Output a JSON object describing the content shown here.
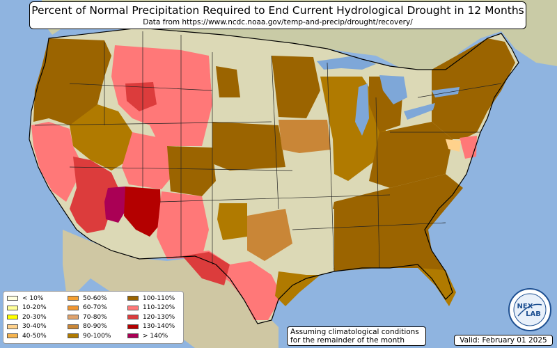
{
  "title": "Percent of Normal Precipitation Required to End Current Hydrological Drought in 12 Months",
  "subtitle": "Data from https://www.ncdc.noaa.gov/temp-and-precip/drought/recovery/",
  "assumption_line1": "Assuming climatological conditions",
  "assumption_line2": "for the remainder of the month",
  "valid_text": "Valid: February 01 2025",
  "logo": {
    "icon": "nex-lab-logo",
    "text_top": "NEX",
    "text_bottom": "LAB"
  },
  "colors": {
    "ocean": "#8fb4e0",
    "land": "#dcd9b6",
    "lakes": "#7ea7d8"
  },
  "legend": [
    {
      "label": "< 10%",
      "color": "#ffffe0"
    },
    {
      "label": "10-20%",
      "color": "#ffff99"
    },
    {
      "label": "20-30%",
      "color": "#ffff00"
    },
    {
      "label": "30-40%",
      "color": "#ffd28c"
    },
    {
      "label": "40-50%",
      "color": "#f5b450"
    },
    {
      "label": "50-60%",
      "color": "#f5a032"
    },
    {
      "label": "60-70%",
      "color": "#f09632"
    },
    {
      "label": "70-80%",
      "color": "#dfa26c"
    },
    {
      "label": "80-90%",
      "color": "#c98637"
    },
    {
      "label": "90-100%",
      "color": "#b07a00"
    },
    {
      "label": "100-110%",
      "color": "#9b6400"
    },
    {
      "label": "110-120%",
      "color": "#ff7878"
    },
    {
      "label": "120-130%",
      "color": "#dc3c3c"
    },
    {
      "label": "130-140%",
      "color": "#b40000"
    },
    {
      "label": "> 140%",
      "color": "#aa0055"
    }
  ],
  "regions": [
    {
      "name": "pacific-northwest",
      "category": "100-110%",
      "color": "#9b6400"
    },
    {
      "name": "california-coast",
      "category": "110-120%",
      "color": "#ff7878"
    },
    {
      "name": "southern-california",
      "category": "120-130%",
      "color": "#dc3c3c"
    },
    {
      "name": "arizona",
      "category": "130-140%",
      "color": "#b40000"
    },
    {
      "name": "western-arizona",
      "category": "> 140%",
      "color": "#aa0055"
    },
    {
      "name": "great-basin",
      "category": "90-100%",
      "color": "#b07a00"
    },
    {
      "name": "montana-wyoming",
      "category": "110-120%",
      "color": "#ff7878"
    },
    {
      "name": "northern-plains",
      "category": "100-110%",
      "color": "#9b6400"
    },
    {
      "name": "texas-west",
      "category": "110-120%",
      "color": "#ff7878"
    },
    {
      "name": "texas-central",
      "category": "90-100%",
      "color": "#b07a00"
    },
    {
      "name": "arkansas-oklahoma",
      "category": "80-90%",
      "color": "#c98637"
    },
    {
      "name": "midwest",
      "category": "90-100%",
      "color": "#b07a00"
    },
    {
      "name": "iowa",
      "category": "80-90%",
      "color": "#c98637"
    },
    {
      "name": "southeast",
      "category": "100-110%",
      "color": "#9b6400"
    },
    {
      "name": "northeast",
      "category": "100-110%",
      "color": "#9b6400"
    },
    {
      "name": "delmarva",
      "category": "110-120%",
      "color": "#ff7878"
    }
  ]
}
